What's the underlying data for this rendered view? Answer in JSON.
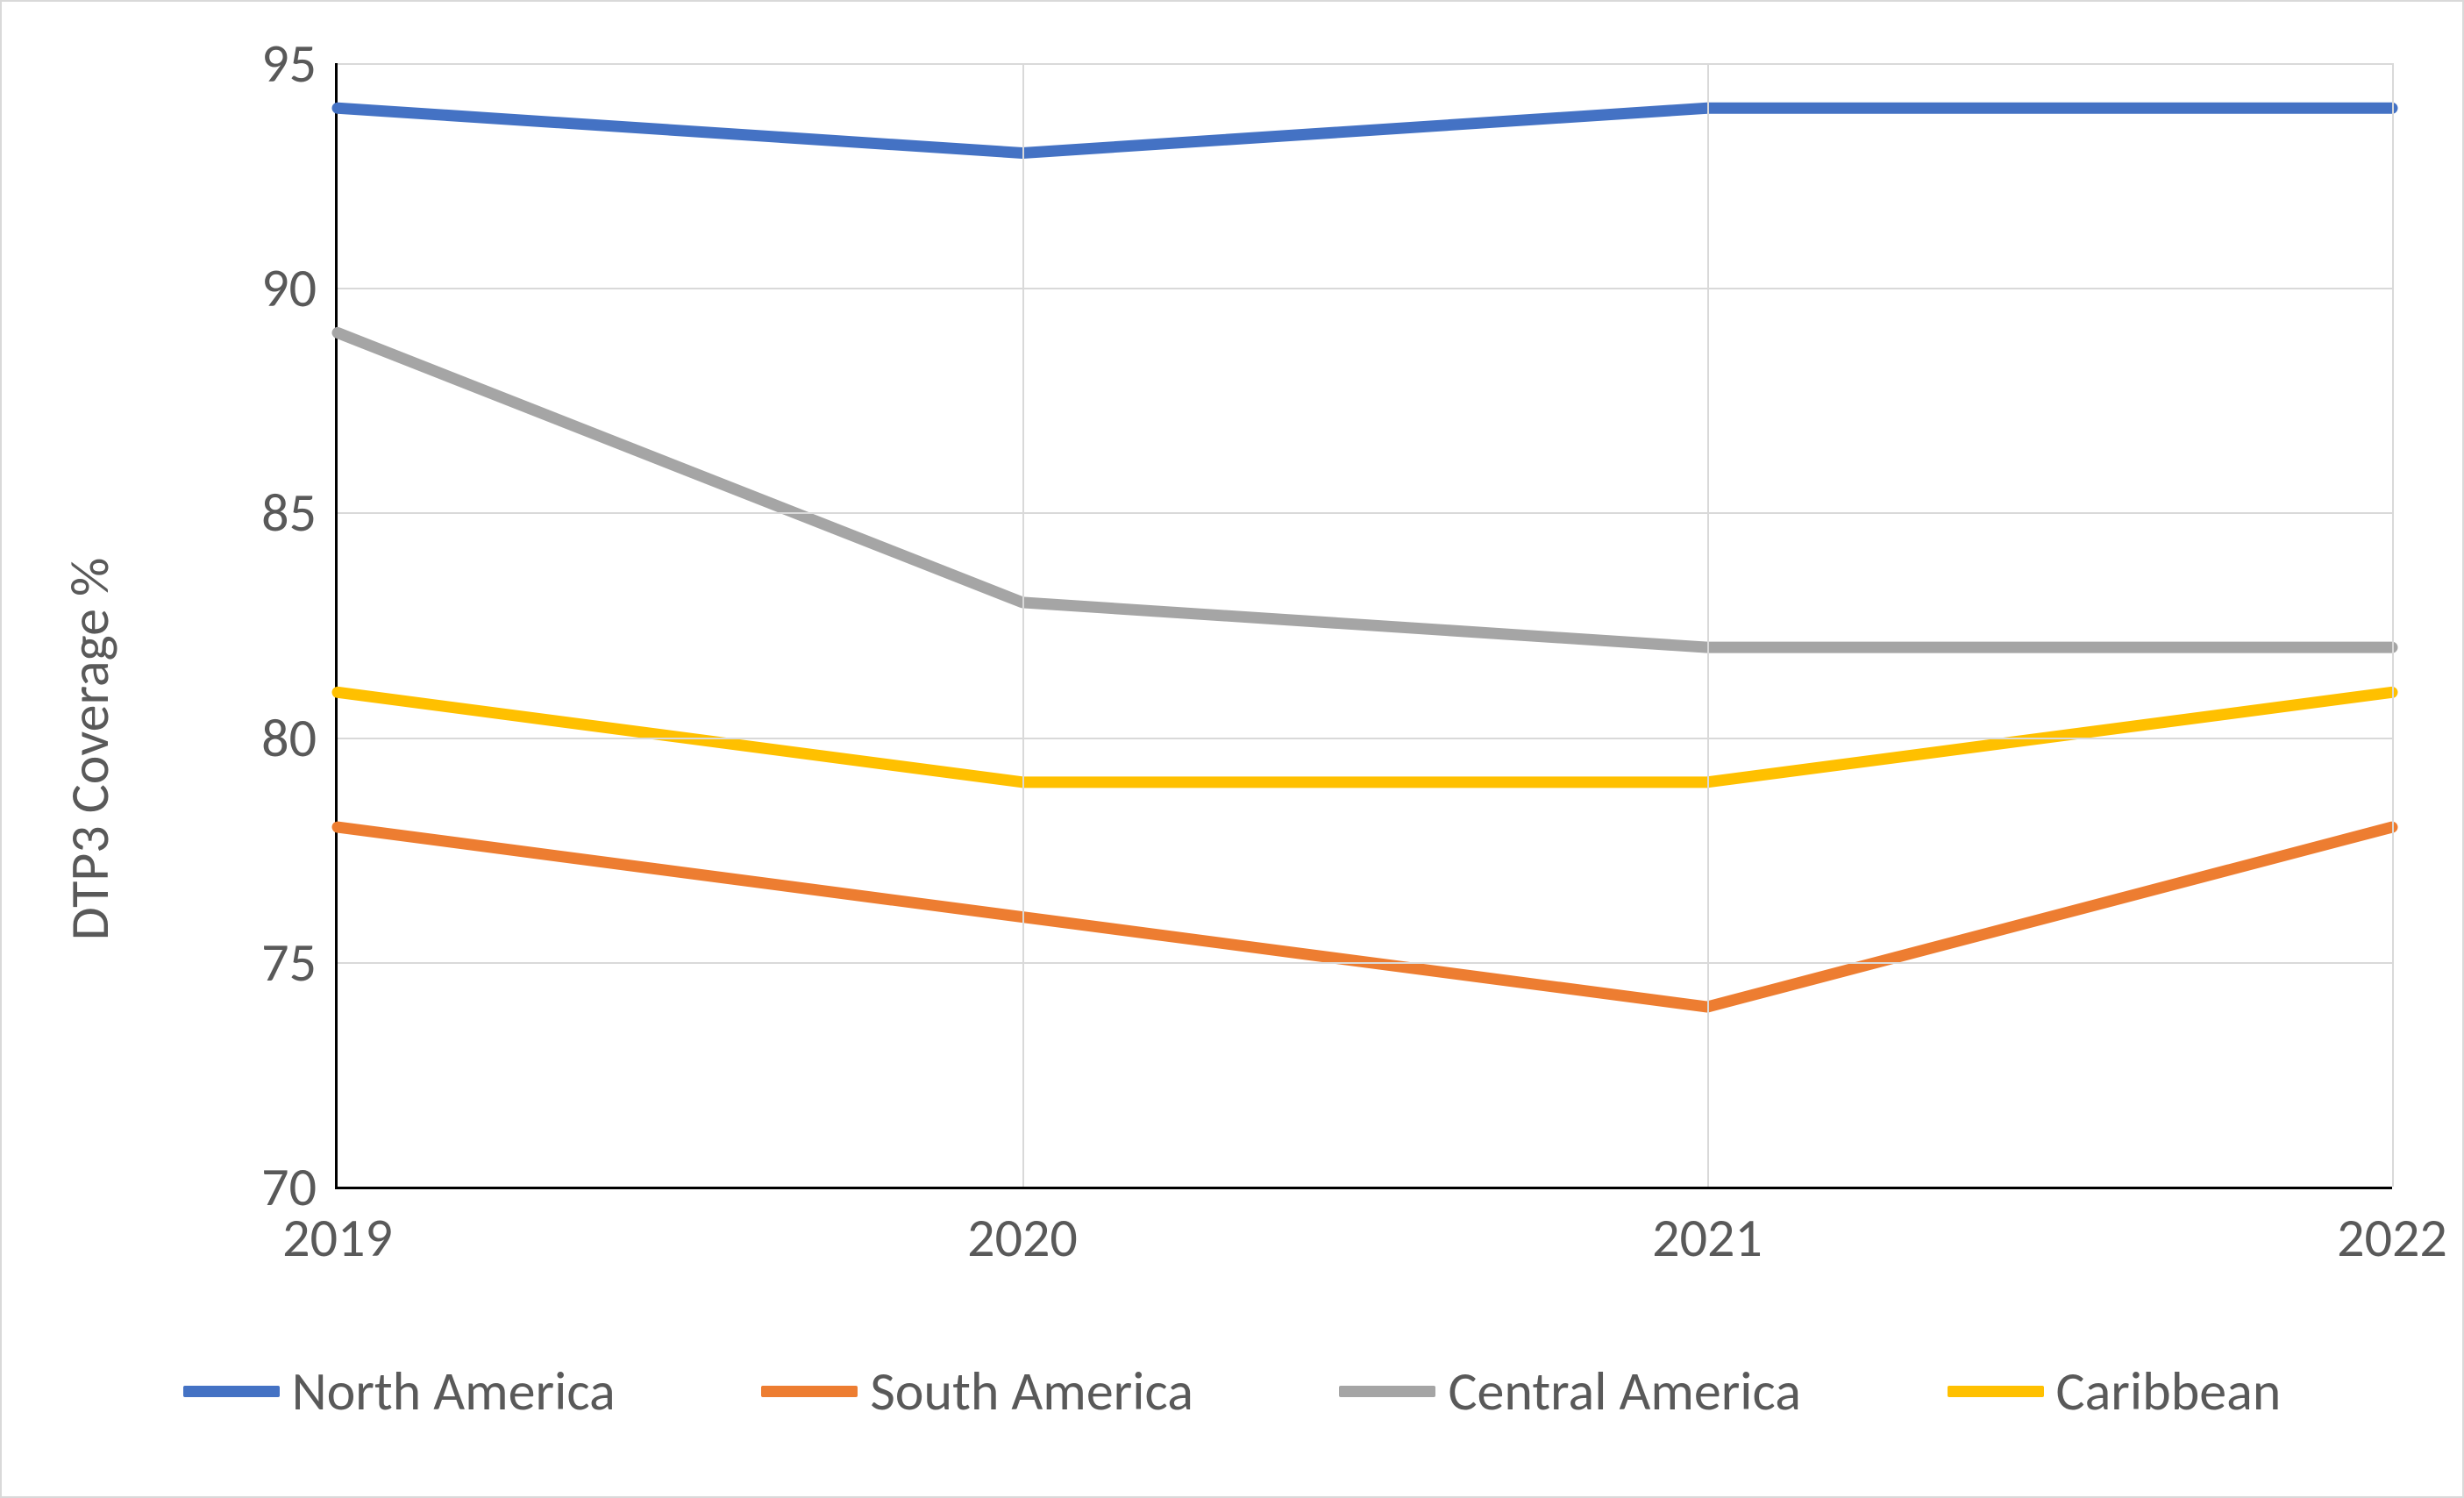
{
  "chart": {
    "type": "line",
    "y_axis_title": "DTP3 Coverage %",
    "y_axis_title_fontsize": 62,
    "tick_fontsize": 62,
    "legend_fontsize": 62,
    "ylim": [
      70,
      95
    ],
    "ytick_step": 5,
    "yticks": [
      70,
      75,
      80,
      85,
      90,
      95
    ],
    "x_categories": [
      "2019",
      "2020",
      "2021",
      "2022"
    ],
    "grid_color": "#d9d9d9",
    "axis_line_color": "#000000",
    "background_color": "#ffffff",
    "text_color": "#595959",
    "line_width": 13,
    "series": [
      {
        "name": "North America",
        "color": "#4472c4",
        "values": [
          94,
          93,
          94,
          94
        ]
      },
      {
        "name": "South America",
        "color": "#ed7d31",
        "values": [
          78,
          76,
          74,
          78
        ]
      },
      {
        "name": "Central America",
        "color": "#a5a5a5",
        "values": [
          89,
          83,
          82,
          82
        ]
      },
      {
        "name": "Caribbean",
        "color": "#ffc000",
        "values": [
          81,
          79,
          79,
          81
        ]
      }
    ]
  }
}
